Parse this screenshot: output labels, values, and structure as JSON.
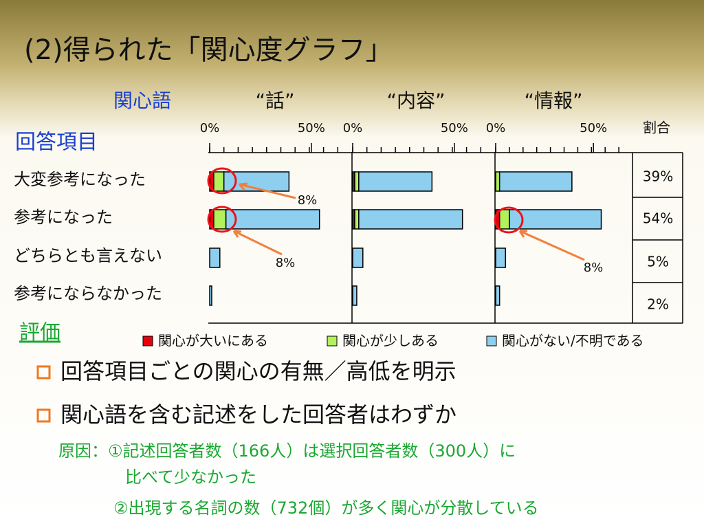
{
  "title": "(2)得られた「関心度グラフ」",
  "chart_data": {
    "type": "bar",
    "panel_header_label": "関心語",
    "category_header": "回答項目",
    "categories": [
      "大変参考になった",
      "参考になった",
      "どちらとも言えない",
      "参考にならなかった"
    ],
    "xlim": [
      0,
      70
    ],
    "xticks": [
      {
        "value": 0,
        "label": "0%"
      },
      {
        "value": 50,
        "label": "50%"
      }
    ],
    "minor_xticks": [
      0,
      7,
      14,
      21,
      28,
      35,
      42,
      49,
      56,
      63
    ],
    "legend": [
      {
        "name": "関心が大いにある",
        "color": "#e8000c"
      },
      {
        "name": "関心が少しある",
        "color": "#b4f05a"
      },
      {
        "name": "関心がない/不明である",
        "color": "#8ecfef"
      }
    ],
    "panels": [
      {
        "title": "“話”",
        "series": [
          {
            "values": [
              2,
              2,
              0,
              0
            ]
          },
          {
            "values": [
              5,
              6,
              0,
              0
            ]
          },
          {
            "values": [
              32,
              46,
              5,
              1
            ]
          }
        ]
      },
      {
        "title": "“内容”",
        "series": [
          {
            "values": [
              1,
              1,
              0,
              0
            ]
          },
          {
            "values": [
              2,
              2,
              0,
              0
            ]
          },
          {
            "values": [
              36,
              51,
              5,
              2
            ]
          }
        ]
      },
      {
        "title": "“情報”",
        "series": [
          {
            "values": [
              0,
              2,
              0,
              0
            ]
          },
          {
            "values": [
              2,
              5,
              0,
              0
            ]
          },
          {
            "values": [
              37,
              47,
              5,
              2
            ]
          }
        ]
      }
    ],
    "ratio_header": "割合",
    "ratios": [
      {
        "value": 39,
        "label": "39%"
      },
      {
        "value": 54,
        "label": "54%"
      },
      {
        "value": 5,
        "label": "5%"
      },
      {
        "value": 2,
        "label": "2%"
      }
    ],
    "annotations": [
      "8%",
      "8%",
      "8%"
    ]
  },
  "evaluation": {
    "heading": "評価",
    "bullets": [
      "回答項目ごとの関心の有無／高低を明示",
      "関心語を含む記述をした回答者はわずか"
    ],
    "notes": [
      "原因：①記述回答者数（166人）は選択回答者数（300人）に",
      "比べて少なかった",
      "②出現する名詞の数（732個）が多く関心が分散している"
    ]
  }
}
